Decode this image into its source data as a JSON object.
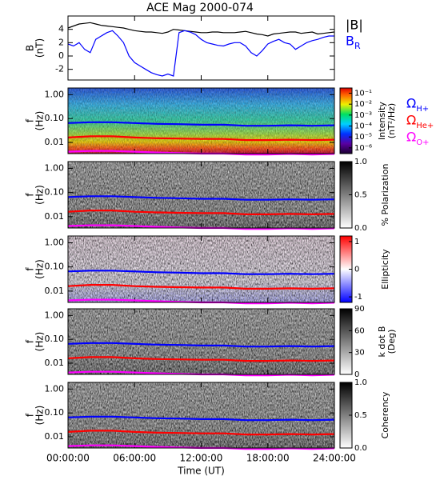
{
  "chart_data": [
    {
      "type": "line",
      "title": "ACE Mag 2000-074",
      "ylabel": [
        "B",
        "(nT)"
      ],
      "x": [
        0,
        0.5,
        1,
        1.5,
        2,
        2.5,
        3,
        3.5,
        4,
        4.5,
        5,
        5.5,
        6,
        6.5,
        7,
        7.5,
        8,
        8.5,
        9,
        9.5,
        10,
        10.5,
        11,
        11.5,
        12,
        12.5,
        13,
        13.5,
        14,
        14.5,
        15,
        15.5,
        16,
        16.5,
        17,
        17.5,
        18,
        18.5,
        19,
        19.5,
        20,
        20.5,
        21,
        21.5,
        22,
        22.5,
        23,
        23.5,
        24
      ],
      "xlim": [
        0,
        24
      ],
      "ylim": [
        -3.6,
        6.0
      ],
      "yticks": [
        -2,
        0,
        2,
        4
      ],
      "series": [
        {
          "name": "|B|",
          "color": "#000000",
          "values": [
            4.2,
            4.5,
            4.8,
            4.9,
            5.0,
            4.8,
            4.6,
            4.5,
            4.4,
            4.3,
            4.2,
            4.0,
            3.8,
            3.7,
            3.6,
            3.6,
            3.5,
            3.4,
            3.6,
            4.0,
            3.9,
            3.8,
            3.7,
            3.6,
            3.5,
            3.5,
            3.6,
            3.6,
            3.5,
            3.5,
            3.5,
            3.6,
            3.7,
            3.5,
            3.3,
            3.2,
            3.0,
            3.3,
            3.4,
            3.5,
            3.6,
            3.6,
            3.4,
            3.5,
            3.6,
            3.3,
            3.4,
            3.5,
            3.6
          ]
        },
        {
          "name": "B",
          "subscript": "R",
          "color": "#0000ff",
          "values": [
            1.8,
            1.5,
            2.0,
            1.0,
            0.5,
            2.5,
            3.0,
            3.5,
            3.8,
            3.0,
            2.0,
            0.0,
            -1.0,
            -1.5,
            -2.0,
            -2.5,
            -2.8,
            -3.0,
            -2.7,
            -3.0,
            3.5,
            3.8,
            3.6,
            3.2,
            2.5,
            2.0,
            1.8,
            1.6,
            1.5,
            1.8,
            2.0,
            2.0,
            1.5,
            0.5,
            0.0,
            0.8,
            1.8,
            2.2,
            2.5,
            2.0,
            1.8,
            1.0,
            1.5,
            2.0,
            2.3,
            2.5,
            2.8,
            3.0,
            3.0
          ]
        }
      ]
    },
    {
      "type": "spectrogram",
      "ylabel": [
        "f",
        "(Hz)"
      ],
      "yscale": "log",
      "ylim": [
        0.0034,
        1.9
      ],
      "yticks": [
        {
          "value": 1,
          "label": "1.00"
        },
        {
          "value": 0.1,
          "label": "0.10"
        },
        {
          "value": 0.01,
          "label": "0.01"
        }
      ],
      "xlim": [
        0,
        24
      ],
      "x": [
        0,
        2,
        4,
        6,
        8,
        10,
        12,
        14,
        16,
        18,
        20,
        22,
        24
      ],
      "series": [
        {
          "name": "Ω",
          "subscript": "H+",
          "color": "#0000ff",
          "values": [
            0.065,
            0.07,
            0.07,
            0.065,
            0.06,
            0.058,
            0.055,
            0.055,
            0.05,
            0.05,
            0.052,
            0.05,
            0.052
          ]
        },
        {
          "name": "Ω",
          "subscript": "He+",
          "color": "#ff0000",
          "values": [
            0.016,
            0.018,
            0.018,
            0.016,
            0.015,
            0.0145,
            0.014,
            0.014,
            0.0125,
            0.0125,
            0.013,
            0.0125,
            0.013
          ]
        },
        {
          "name": "Ω",
          "subscript": "O+",
          "color": "#ff00ff",
          "values": [
            0.0041,
            0.0044,
            0.0044,
            0.0041,
            0.0038,
            0.0036,
            0.0034,
            0.0034,
            0.0031,
            0.0031,
            0.0033,
            0.0031,
            0.0033
          ]
        }
      ],
      "colorbar": {
        "label": [
          "Intensity",
          "(nT²/Hz)"
        ],
        "scale": "log",
        "clim": [
          3e-07,
          0.3
        ],
        "colormap": "rainbow",
        "ticks": [
          {
            "value": 0.1,
            "label": "10⁻¹"
          },
          {
            "value": 0.01,
            "label": "10⁻²"
          },
          {
            "value": 0.001,
            "label": "10⁻³"
          },
          {
            "value": 0.0001,
            "label": "10⁻⁴"
          },
          {
            "value": 1e-05,
            "label": "10⁻⁵"
          },
          {
            "value": 1e-06,
            "label": "10⁻⁶"
          }
        ]
      }
    },
    {
      "type": "spectrogram",
      "ylabel": [
        "f",
        "(Hz)"
      ],
      "yscale": "log",
      "ylim": [
        0.0034,
        1.9
      ],
      "yticks": [
        {
          "value": 1,
          "label": "1.00"
        },
        {
          "value": 0.1,
          "label": "0.10"
        },
        {
          "value": 0.01,
          "label": "0.01"
        }
      ],
      "xlim": [
        0,
        24
      ],
      "x": [
        0,
        2,
        4,
        6,
        8,
        10,
        12,
        14,
        16,
        18,
        20,
        22,
        24
      ],
      "series": [
        {
          "color": "#0000ff",
          "values": [
            0.065,
            0.07,
            0.07,
            0.065,
            0.06,
            0.058,
            0.055,
            0.055,
            0.05,
            0.05,
            0.052,
            0.05,
            0.052
          ]
        },
        {
          "color": "#ff0000",
          "values": [
            0.016,
            0.018,
            0.018,
            0.016,
            0.015,
            0.0145,
            0.014,
            0.014,
            0.0125,
            0.0125,
            0.013,
            0.0125,
            0.013
          ]
        },
        {
          "color": "#ff00ff",
          "values": [
            0.0041,
            0.0044,
            0.0044,
            0.0041,
            0.0038,
            0.0036,
            0.0034,
            0.0034,
            0.0031,
            0.0031,
            0.0033,
            0.0031,
            0.0033
          ]
        }
      ],
      "colorbar": {
        "label": [
          "% Polarization"
        ],
        "scale": "linear",
        "clim": [
          0,
          1
        ],
        "colormap": "gray",
        "ticks": [
          {
            "value": 1,
            "label": "1.0"
          },
          {
            "value": 0.5,
            "label": "0.5"
          },
          {
            "value": 0,
            "label": "0.0"
          }
        ]
      }
    },
    {
      "type": "spectrogram",
      "ylabel": [
        "f",
        "(Hz)"
      ],
      "yscale": "log",
      "ylim": [
        0.0034,
        1.9
      ],
      "yticks": [
        {
          "value": 1,
          "label": "1.00"
        },
        {
          "value": 0.1,
          "label": "0.10"
        },
        {
          "value": 0.01,
          "label": "0.01"
        }
      ],
      "xlim": [
        0,
        24
      ],
      "x": [
        0,
        2,
        4,
        6,
        8,
        10,
        12,
        14,
        16,
        18,
        20,
        22,
        24
      ],
      "series": [
        {
          "color": "#0000ff",
          "values": [
            0.065,
            0.07,
            0.07,
            0.065,
            0.06,
            0.058,
            0.055,
            0.055,
            0.05,
            0.05,
            0.052,
            0.05,
            0.052
          ]
        },
        {
          "color": "#ff0000",
          "values": [
            0.016,
            0.018,
            0.018,
            0.016,
            0.015,
            0.0145,
            0.014,
            0.014,
            0.0125,
            0.0125,
            0.013,
            0.0125,
            0.013
          ]
        },
        {
          "color": "#ff00ff",
          "values": [
            0.0041,
            0.0044,
            0.0044,
            0.0041,
            0.0038,
            0.0036,
            0.0034,
            0.0034,
            0.0031,
            0.0031,
            0.0033,
            0.0031,
            0.0033
          ]
        }
      ],
      "colorbar": {
        "label": [
          "Ellipticity"
        ],
        "scale": "linear",
        "clim": [
          -1.2,
          1.2
        ],
        "colormap": "bwr",
        "ticks": [
          1,
          0,
          -1
        ]
      }
    },
    {
      "type": "spectrogram",
      "ylabel": [
        "f",
        "(Hz)"
      ],
      "yscale": "log",
      "ylim": [
        0.0034,
        1.9
      ],
      "yticks": [
        {
          "value": 1,
          "label": "1.00"
        },
        {
          "value": 0.1,
          "label": "0.10"
        },
        {
          "value": 0.01,
          "label": "0.01"
        }
      ],
      "xlim": [
        0,
        24
      ],
      "x": [
        0,
        2,
        4,
        6,
        8,
        10,
        12,
        14,
        16,
        18,
        20,
        22,
        24
      ],
      "series": [
        {
          "color": "#0000ff",
          "values": [
            0.065,
            0.07,
            0.07,
            0.065,
            0.06,
            0.058,
            0.055,
            0.055,
            0.05,
            0.05,
            0.052,
            0.05,
            0.052
          ]
        },
        {
          "color": "#ff0000",
          "values": [
            0.016,
            0.018,
            0.018,
            0.016,
            0.015,
            0.0145,
            0.014,
            0.014,
            0.0125,
            0.0125,
            0.013,
            0.0125,
            0.013
          ]
        },
        {
          "color": "#ff00ff",
          "values": [
            0.0041,
            0.0044,
            0.0044,
            0.0041,
            0.0038,
            0.0036,
            0.0034,
            0.0034,
            0.0031,
            0.0031,
            0.0033,
            0.0031,
            0.0033
          ]
        }
      ],
      "colorbar": {
        "label": [
          "k dot B",
          "(Deg)"
        ],
        "scale": "linear",
        "clim": [
          0,
          90
        ],
        "colormap": "gray",
        "ticks": [
          90,
          60,
          30,
          0
        ]
      }
    },
    {
      "type": "spectrogram",
      "ylabel": [
        "f",
        "(Hz)"
      ],
      "yscale": "log",
      "ylim": [
        0.0034,
        1.9
      ],
      "yticks": [
        {
          "value": 1,
          "label": "1.00"
        },
        {
          "value": 0.1,
          "label": "0.10"
        },
        {
          "value": 0.01,
          "label": "0.01"
        }
      ],
      "xlim": [
        0,
        24
      ],
      "x": [
        0,
        2,
        4,
        6,
        8,
        10,
        12,
        14,
        16,
        18,
        20,
        22,
        24
      ],
      "series": [
        {
          "color": "#0000ff",
          "values": [
            0.065,
            0.07,
            0.07,
            0.065,
            0.06,
            0.058,
            0.055,
            0.055,
            0.05,
            0.05,
            0.052,
            0.05,
            0.052
          ]
        },
        {
          "color": "#ff0000",
          "values": [
            0.016,
            0.018,
            0.018,
            0.016,
            0.015,
            0.0145,
            0.014,
            0.014,
            0.0125,
            0.0125,
            0.013,
            0.0125,
            0.013
          ]
        },
        {
          "color": "#ff00ff",
          "values": [
            0.0041,
            0.0044,
            0.0044,
            0.0041,
            0.0038,
            0.0036,
            0.0034,
            0.0034,
            0.0031,
            0.0031,
            0.0033,
            0.0031,
            0.0033
          ]
        }
      ],
      "colorbar": {
        "label": [
          "Coherency"
        ],
        "scale": "linear",
        "clim": [
          0,
          1
        ],
        "colormap": "gray",
        "ticks": [
          {
            "value": 1,
            "label": "1.0"
          },
          {
            "value": 0.5,
            "label": "0.5"
          },
          {
            "value": 0,
            "label": "0.0"
          }
        ]
      },
      "xlabel": "Time (UT)",
      "xticks": [
        {
          "value": 0,
          "label": "00:00:00"
        },
        {
          "value": 6,
          "label": "06:00:00"
        },
        {
          "value": 12,
          "label": "12:00:00"
        },
        {
          "value": 18,
          "label": "18:00:00"
        },
        {
          "value": 24,
          "label": "24:00:00"
        }
      ]
    }
  ]
}
